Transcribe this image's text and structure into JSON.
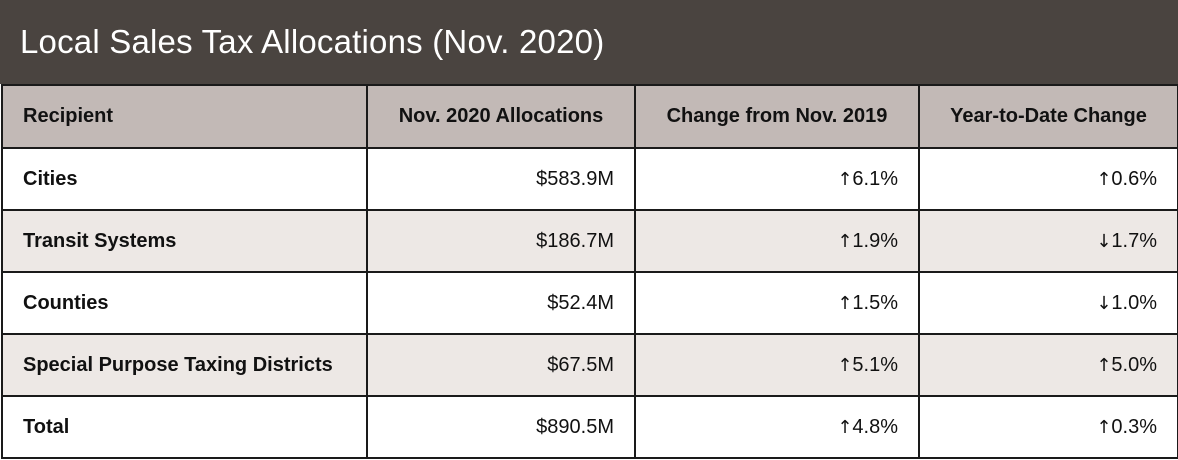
{
  "title": "Local Sales Tax Allocations (Nov. 2020)",
  "columns": [
    "Recipient",
    "Nov. 2020 Allocations",
    "Change from Nov. 2019",
    "Year-to-Date Change"
  ],
  "rows": [
    {
      "recipient": "Cities",
      "allocation": "$583.9M",
      "change_dir": "↑",
      "change": "6.1%",
      "ytd_dir": "↑",
      "ytd": "0.6%"
    },
    {
      "recipient": "Transit Systems",
      "allocation": "$186.7M",
      "change_dir": "↑",
      "change": "1.9%",
      "ytd_dir": "↓",
      "ytd": "1.7%"
    },
    {
      "recipient": "Counties",
      "allocation": "$52.4M",
      "change_dir": "↑",
      "change": "1.5%",
      "ytd_dir": "↓",
      "ytd": "1.0%"
    },
    {
      "recipient": "Special Purpose Taxing Districts",
      "allocation": "$67.5M",
      "change_dir": "↑",
      "change": "5.1%",
      "ytd_dir": "↑",
      "ytd": "5.0%"
    },
    {
      "recipient": "Total",
      "allocation": "$890.5M",
      "change_dir": "↑",
      "change": "4.8%",
      "ytd_dir": "↑",
      "ytd": "0.3%"
    }
  ],
  "colors": {
    "title_bg": "#4a4440",
    "header_bg": "#c2b9b6",
    "alt_row_bg": "#ede8e5"
  }
}
